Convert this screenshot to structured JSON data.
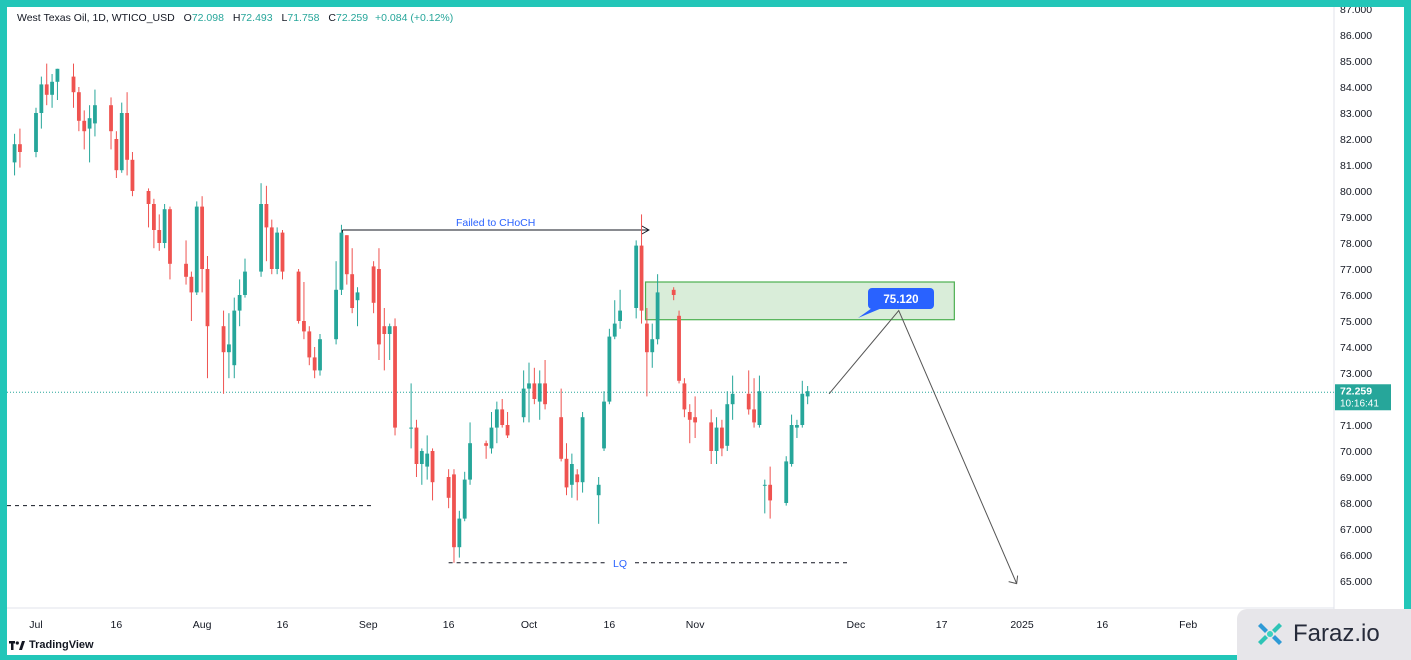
{
  "header": {
    "symbol": "West Texas Oil, 1D, WTICO_USD",
    "open_label": "O",
    "open": "72.098",
    "high_label": "H",
    "high": "72.493",
    "low_label": "L",
    "low": "71.758",
    "close_label": "C",
    "close": "72.259",
    "change": "+0.084 (+0.12%)"
  },
  "branding": {
    "tradingview": "TradingView",
    "faraz": "Faraz.io"
  },
  "colors": {
    "up": "#26a69a",
    "down": "#ef5350",
    "frame": "#22c6b8",
    "zone_fill": "#cfe8cf",
    "zone_border": "#4caf50",
    "label_blue": "#2962ff"
  },
  "chart_data": {
    "type": "candlestick",
    "title": "",
    "y_range": [
      64,
      87
    ],
    "y_ticks": [
      "65.000",
      "66.000",
      "67.000",
      "68.000",
      "69.000",
      "70.000",
      "71.000",
      "72.000",
      "73.000",
      "74.000",
      "75.000",
      "76.000",
      "77.000",
      "78.000",
      "79.000",
      "80.000",
      "81.000",
      "82.000",
      "83.000",
      "84.000",
      "85.000",
      "86.000",
      "87.000"
    ],
    "x_ticks": [
      {
        "label": "Jul",
        "date": "2024-07-01"
      },
      {
        "label": "16",
        "date": "2024-07-16"
      },
      {
        "label": "Aug",
        "date": "2024-08-01"
      },
      {
        "label": "16",
        "date": "2024-08-16"
      },
      {
        "label": "Sep",
        "date": "2024-09-01"
      },
      {
        "label": "16",
        "date": "2024-09-16"
      },
      {
        "label": "Oct",
        "date": "2024-10-01"
      },
      {
        "label": "16",
        "date": "2024-10-16"
      },
      {
        "label": "Nov",
        "date": "2024-11-01"
      },
      {
        "label": "Dec",
        "date": "2024-12-01"
      },
      {
        "label": "17",
        "date": "2024-12-17"
      },
      {
        "label": "2025",
        "date": "2025-01-01"
      },
      {
        "label": "16",
        "date": "2025-01-16"
      },
      {
        "label": "Feb",
        "date": "2025-02-01"
      }
    ],
    "candles": [
      {
        "date": "2024-06-27",
        "o": 81.1,
        "h": 82.2,
        "l": 80.6,
        "c": 81.8
      },
      {
        "date": "2024-06-28",
        "o": 81.8,
        "h": 82.4,
        "l": 80.9,
        "c": 81.5
      },
      {
        "date": "2024-07-01",
        "o": 81.5,
        "h": 83.2,
        "l": 81.3,
        "c": 83.0
      },
      {
        "date": "2024-07-02",
        "o": 83.0,
        "h": 84.4,
        "l": 82.4,
        "c": 84.1
      },
      {
        "date": "2024-07-03",
        "o": 84.1,
        "h": 84.9,
        "l": 83.3,
        "c": 83.7
      },
      {
        "date": "2024-07-04",
        "o": 83.7,
        "h": 84.5,
        "l": 83.2,
        "c": 84.2
      },
      {
        "date": "2024-07-05",
        "o": 84.2,
        "h": 84.7,
        "l": 83.5,
        "c": 84.7
      },
      {
        "date": "2024-07-08",
        "o": 84.4,
        "h": 84.9,
        "l": 83.2,
        "c": 83.8
      },
      {
        "date": "2024-07-09",
        "o": 83.8,
        "h": 84.0,
        "l": 82.3,
        "c": 82.7
      },
      {
        "date": "2024-07-10",
        "o": 82.7,
        "h": 83.1,
        "l": 81.6,
        "c": 82.3
      },
      {
        "date": "2024-07-11",
        "o": 82.4,
        "h": 83.3,
        "l": 81.1,
        "c": 82.8
      },
      {
        "date": "2024-07-12",
        "o": 82.6,
        "h": 83.9,
        "l": 82.1,
        "c": 83.3
      },
      {
        "date": "2024-07-15",
        "o": 83.3,
        "h": 83.6,
        "l": 81.6,
        "c": 82.3
      },
      {
        "date": "2024-07-16",
        "o": 82.0,
        "h": 82.3,
        "l": 80.5,
        "c": 80.8
      },
      {
        "date": "2024-07-17",
        "o": 80.8,
        "h": 83.4,
        "l": 80.7,
        "c": 83.0
      },
      {
        "date": "2024-07-18",
        "o": 83.0,
        "h": 83.8,
        "l": 80.6,
        "c": 81.2
      },
      {
        "date": "2024-07-19",
        "o": 81.2,
        "h": 81.5,
        "l": 79.8,
        "c": 80.0
      },
      {
        "date": "2024-07-22",
        "o": 80.0,
        "h": 80.1,
        "l": 78.6,
        "c": 79.5
      },
      {
        "date": "2024-07-23",
        "o": 79.5,
        "h": 79.7,
        "l": 77.8,
        "c": 78.5
      },
      {
        "date": "2024-07-24",
        "o": 78.5,
        "h": 79.1,
        "l": 77.7,
        "c": 78.0
      },
      {
        "date": "2024-07-25",
        "o": 78.0,
        "h": 79.5,
        "l": 77.8,
        "c": 79.3
      },
      {
        "date": "2024-07-26",
        "o": 79.3,
        "h": 79.4,
        "l": 76.6,
        "c": 77.2
      },
      {
        "date": "2024-07-29",
        "o": 77.2,
        "h": 78.1,
        "l": 76.4,
        "c": 76.7
      },
      {
        "date": "2024-07-30",
        "o": 76.7,
        "h": 76.9,
        "l": 75.0,
        "c": 76.1
      },
      {
        "date": "2024-07-31",
        "o": 76.1,
        "h": 79.6,
        "l": 76.0,
        "c": 79.4
      },
      {
        "date": "2024-08-01",
        "o": 79.4,
        "h": 79.8,
        "l": 76.1,
        "c": 77.0
      },
      {
        "date": "2024-08-02",
        "o": 77.0,
        "h": 77.5,
        "l": 72.8,
        "c": 74.8
      },
      {
        "date": "2024-08-05",
        "o": 74.8,
        "h": 75.4,
        "l": 72.2,
        "c": 73.8
      },
      {
        "date": "2024-08-06",
        "o": 73.8,
        "h": 75.3,
        "l": 72.8,
        "c": 74.1
      },
      {
        "date": "2024-08-07",
        "o": 73.3,
        "h": 75.9,
        "l": 72.8,
        "c": 75.4
      },
      {
        "date": "2024-08-08",
        "o": 75.4,
        "h": 76.6,
        "l": 74.8,
        "c": 76.0
      },
      {
        "date": "2024-08-09",
        "o": 76.0,
        "h": 77.4,
        "l": 75.9,
        "c": 76.9
      },
      {
        "date": "2024-08-12",
        "o": 76.9,
        "h": 80.3,
        "l": 76.7,
        "c": 79.5
      },
      {
        "date": "2024-08-13",
        "o": 79.5,
        "h": 80.2,
        "l": 77.3,
        "c": 78.6
      },
      {
        "date": "2024-08-14",
        "o": 78.6,
        "h": 78.9,
        "l": 76.8,
        "c": 77.0
      },
      {
        "date": "2024-08-15",
        "o": 77.0,
        "h": 78.6,
        "l": 76.8,
        "c": 78.4
      },
      {
        "date": "2024-08-16",
        "o": 78.4,
        "h": 78.5,
        "l": 76.6,
        "c": 76.9
      },
      {
        "date": "2024-08-19",
        "o": 76.9,
        "h": 77.0,
        "l": 74.9,
        "c": 75.0
      },
      {
        "date": "2024-08-20",
        "o": 75.0,
        "h": 76.5,
        "l": 74.3,
        "c": 74.6
      },
      {
        "date": "2024-08-21",
        "o": 74.6,
        "h": 74.8,
        "l": 73.3,
        "c": 73.6
      },
      {
        "date": "2024-08-22",
        "o": 73.6,
        "h": 74.0,
        "l": 72.8,
        "c": 73.1
      },
      {
        "date": "2024-08-23",
        "o": 73.1,
        "h": 74.5,
        "l": 72.9,
        "c": 74.3
      },
      {
        "date": "2024-08-26",
        "o": 74.3,
        "h": 77.3,
        "l": 74.1,
        "c": 76.2
      },
      {
        "date": "2024-08-27",
        "o": 76.2,
        "h": 78.7,
        "l": 76.0,
        "c": 78.4
      },
      {
        "date": "2024-08-28",
        "o": 78.3,
        "h": 78.3,
        "l": 76.4,
        "c": 76.8
      },
      {
        "date": "2024-08-29",
        "o": 76.8,
        "h": 77.8,
        "l": 75.3,
        "c": 75.5
      },
      {
        "date": "2024-08-30",
        "o": 75.8,
        "h": 76.3,
        "l": 74.8,
        "c": 76.1
      },
      {
        "date": "2024-09-02",
        "o": 77.1,
        "h": 77.3,
        "l": 75.3,
        "c": 75.7
      },
      {
        "date": "2024-09-03",
        "o": 77.0,
        "h": 77.8,
        "l": 73.5,
        "c": 74.1
      },
      {
        "date": "2024-09-04",
        "o": 74.8,
        "h": 75.5,
        "l": 73.1,
        "c": 74.5
      },
      {
        "date": "2024-09-05",
        "o": 74.5,
        "h": 74.9,
        "l": 73.5,
        "c": 74.8
      },
      {
        "date": "2024-09-06",
        "o": 74.8,
        "h": 75.1,
        "l": 70.6,
        "c": 70.9
      },
      {
        "date": "2024-09-09",
        "o": 70.9,
        "h": 72.6,
        "l": 70.1,
        "c": 70.9
      },
      {
        "date": "2024-09-10",
        "o": 70.9,
        "h": 71.2,
        "l": 69.0,
        "c": 69.5
      },
      {
        "date": "2024-09-11",
        "o": 69.5,
        "h": 70.1,
        "l": 68.7,
        "c": 70.0
      },
      {
        "date": "2024-09-12",
        "o": 69.4,
        "h": 70.6,
        "l": 68.9,
        "c": 69.9
      },
      {
        "date": "2024-09-13",
        "o": 70.0,
        "h": 70.1,
        "l": 68.1,
        "c": 68.8
      },
      {
        "date": "2024-09-16",
        "o": 69.0,
        "h": 69.3,
        "l": 67.8,
        "c": 68.2
      },
      {
        "date": "2024-09-17",
        "o": 69.1,
        "h": 69.3,
        "l": 65.7,
        "c": 66.3
      },
      {
        "date": "2024-09-18",
        "o": 66.3,
        "h": 67.7,
        "l": 65.9,
        "c": 67.4
      },
      {
        "date": "2024-09-19",
        "o": 67.4,
        "h": 69.2,
        "l": 67.3,
        "c": 68.9
      },
      {
        "date": "2024-09-20",
        "o": 68.9,
        "h": 71.1,
        "l": 68.7,
        "c": 70.3
      },
      {
        "date": "2024-09-23",
        "o": 70.3,
        "h": 70.4,
        "l": 69.7,
        "c": 70.2
      },
      {
        "date": "2024-09-24",
        "o": 70.1,
        "h": 71.5,
        "l": 69.9,
        "c": 70.9
      },
      {
        "date": "2024-09-25",
        "o": 70.9,
        "h": 71.9,
        "l": 70.3,
        "c": 71.6
      },
      {
        "date": "2024-09-26",
        "o": 71.6,
        "h": 72.0,
        "l": 70.9,
        "c": 71.0
      },
      {
        "date": "2024-09-27",
        "o": 71.0,
        "h": 71.5,
        "l": 70.5,
        "c": 70.6
      },
      {
        "date": "2024-09-30",
        "o": 71.3,
        "h": 73.1,
        "l": 71.1,
        "c": 72.4
      },
      {
        "date": "2024-10-01",
        "o": 72.4,
        "h": 73.4,
        "l": 71.1,
        "c": 72.6
      },
      {
        "date": "2024-10-02",
        "o": 72.6,
        "h": 73.2,
        "l": 71.8,
        "c": 72.0
      },
      {
        "date": "2024-10-03",
        "o": 71.9,
        "h": 73.1,
        "l": 71.2,
        "c": 72.6
      },
      {
        "date": "2024-10-04",
        "o": 72.6,
        "h": 73.5,
        "l": 71.6,
        "c": 71.8
      },
      {
        "date": "2024-10-07",
        "o": 71.3,
        "h": 72.4,
        "l": 69.6,
        "c": 69.7
      },
      {
        "date": "2024-10-08",
        "o": 69.7,
        "h": 70.3,
        "l": 68.3,
        "c": 68.6
      },
      {
        "date": "2024-10-09",
        "o": 68.7,
        "h": 69.9,
        "l": 68.2,
        "c": 69.5
      },
      {
        "date": "2024-10-10",
        "o": 69.1,
        "h": 69.3,
        "l": 68.1,
        "c": 68.8
      },
      {
        "date": "2024-10-11",
        "o": 68.8,
        "h": 71.5,
        "l": 68.4,
        "c": 71.3
      },
      {
        "date": "2024-10-14",
        "o": 68.3,
        "h": 69.0,
        "l": 67.2,
        "c": 68.7
      },
      {
        "date": "2024-10-15",
        "o": 70.1,
        "h": 72.3,
        "l": 70.0,
        "c": 71.9
      },
      {
        "date": "2024-10-16",
        "o": 71.9,
        "h": 74.7,
        "l": 71.8,
        "c": 74.4
      },
      {
        "date": "2024-10-17",
        "o": 74.4,
        "h": 75.8,
        "l": 74.3,
        "c": 74.9
      },
      {
        "date": "2024-10-18",
        "o": 75.0,
        "h": 76.2,
        "l": 74.7,
        "c": 75.4
      },
      {
        "date": "2024-10-21",
        "o": 75.5,
        "h": 78.1,
        "l": 75.1,
        "c": 77.9
      },
      {
        "date": "2024-10-22",
        "o": 77.9,
        "h": 79.1,
        "l": 74.9,
        "c": 75.4
      },
      {
        "date": "2024-10-23",
        "o": 74.9,
        "h": 75.5,
        "l": 72.1,
        "c": 73.8
      },
      {
        "date": "2024-10-24",
        "o": 73.8,
        "h": 74.9,
        "l": 73.2,
        "c": 74.3
      },
      {
        "date": "2024-10-25",
        "o": 74.3,
        "h": 76.8,
        "l": 74.1,
        "c": 76.1
      },
      {
        "date": "2024-10-28",
        "o": 76.2,
        "h": 76.3,
        "l": 75.8,
        "c": 76.0
      },
      {
        "date": "2024-10-29",
        "o": 75.2,
        "h": 75.4,
        "l": 72.6,
        "c": 72.7
      },
      {
        "date": "2024-10-30",
        "o": 72.6,
        "h": 72.8,
        "l": 71.3,
        "c": 71.6
      },
      {
        "date": "2024-10-31",
        "o": 71.5,
        "h": 71.8,
        "l": 70.3,
        "c": 71.2
      },
      {
        "date": "2024-11-01",
        "o": 71.3,
        "h": 72.1,
        "l": 70.5,
        "c": 71.1
      },
      {
        "date": "2024-11-04",
        "o": 71.1,
        "h": 71.6,
        "l": 69.5,
        "c": 70.0
      },
      {
        "date": "2024-11-05",
        "o": 70.0,
        "h": 71.3,
        "l": 69.5,
        "c": 70.9
      },
      {
        "date": "2024-11-06",
        "o": 70.9,
        "h": 71.2,
        "l": 69.8,
        "c": 70.1
      },
      {
        "date": "2024-11-07",
        "o": 70.2,
        "h": 72.3,
        "l": 70.0,
        "c": 71.8
      },
      {
        "date": "2024-11-08",
        "o": 71.8,
        "h": 72.9,
        "l": 71.2,
        "c": 72.2
      },
      {
        "date": "2024-11-11",
        "o": 72.2,
        "h": 73.1,
        "l": 71.4,
        "c": 71.6
      },
      {
        "date": "2024-11-12",
        "o": 71.6,
        "h": 72.8,
        "l": 70.9,
        "c": 71.1
      },
      {
        "date": "2024-11-13",
        "o": 71.0,
        "h": 72.9,
        "l": 70.9,
        "c": 72.3
      },
      {
        "date": "2024-11-14",
        "o": 68.7,
        "h": 68.9,
        "l": 67.6,
        "c": 68.7
      },
      {
        "date": "2024-11-15",
        "o": 68.7,
        "h": 69.4,
        "l": 67.4,
        "c": 68.1
      },
      {
        "date": "2024-11-18",
        "o": 68.0,
        "h": 69.8,
        "l": 67.9,
        "c": 69.6
      },
      {
        "date": "2024-11-19",
        "o": 69.5,
        "h": 71.4,
        "l": 69.4,
        "c": 71.0
      },
      {
        "date": "2024-11-20",
        "o": 70.9,
        "h": 71.2,
        "l": 70.5,
        "c": 71.0
      },
      {
        "date": "2024-11-21",
        "o": 71.0,
        "h": 72.7,
        "l": 70.9,
        "c": 72.2
      },
      {
        "date": "2024-11-22",
        "o": 72.1,
        "h": 72.5,
        "l": 71.8,
        "c": 72.3
      }
    ],
    "current_price": "72.259",
    "countdown": "10:16:41",
    "annotations": {
      "choch_text": "Failed to CHoCH",
      "choch_price": 78.5,
      "lq_text": "LQ",
      "lq_price": 65.7,
      "support_price": 67.9,
      "zone_top": 76.5,
      "zone_bottom": 75.05,
      "zone_label": "75.120",
      "path": [
        {
          "date": "2024-11-26",
          "price": 72.2
        },
        {
          "date": "2024-12-09",
          "price": 75.4
        },
        {
          "date": "2024-12-31",
          "price": 64.9
        }
      ]
    }
  }
}
